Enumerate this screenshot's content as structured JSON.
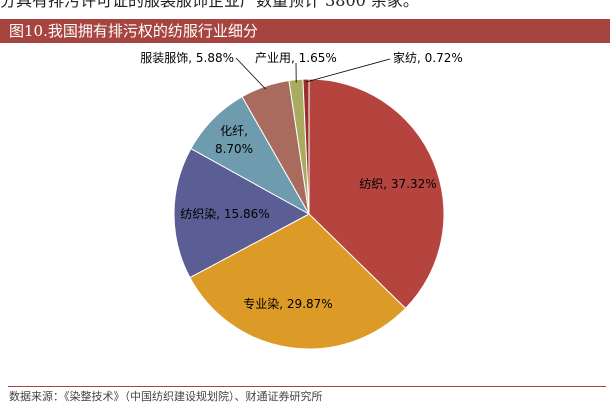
{
  "header_text": "分具有排污许可证的服装服饰企业产数量预计 3800 余家。",
  "figure_title": "图10.我国拥有排污权的纺服行业细分",
  "source_note": "数据来源：《染整技术》（中国纺织建设规划院）、财通证券研究所",
  "colors": {
    "title_bar": "#a6453f",
    "slices": [
      "#b5443f",
      "#dc9a27",
      "#5a5e94",
      "#6e9cae",
      "#a96b5e",
      "#a9ab60",
      "#9a2d2d"
    ]
  },
  "chart_data": {
    "type": "pie",
    "title": "",
    "labels": [
      "纺织",
      "专业染",
      "纺织染",
      "化纤",
      "服装服饰",
      "产业用",
      "家纺"
    ],
    "values": [
      37.32,
      29.87,
      15.86,
      8.7,
      5.88,
      1.65,
      0.72
    ],
    "label_texts": [
      "纺织, 37.32%",
      "专业染, 29.87%",
      "纺织染, 15.86%",
      "化纤,",
      "8.70%",
      "服装服饰, 5.88%",
      "产业用, 1.65%",
      "家纺, 0.72%"
    ]
  }
}
